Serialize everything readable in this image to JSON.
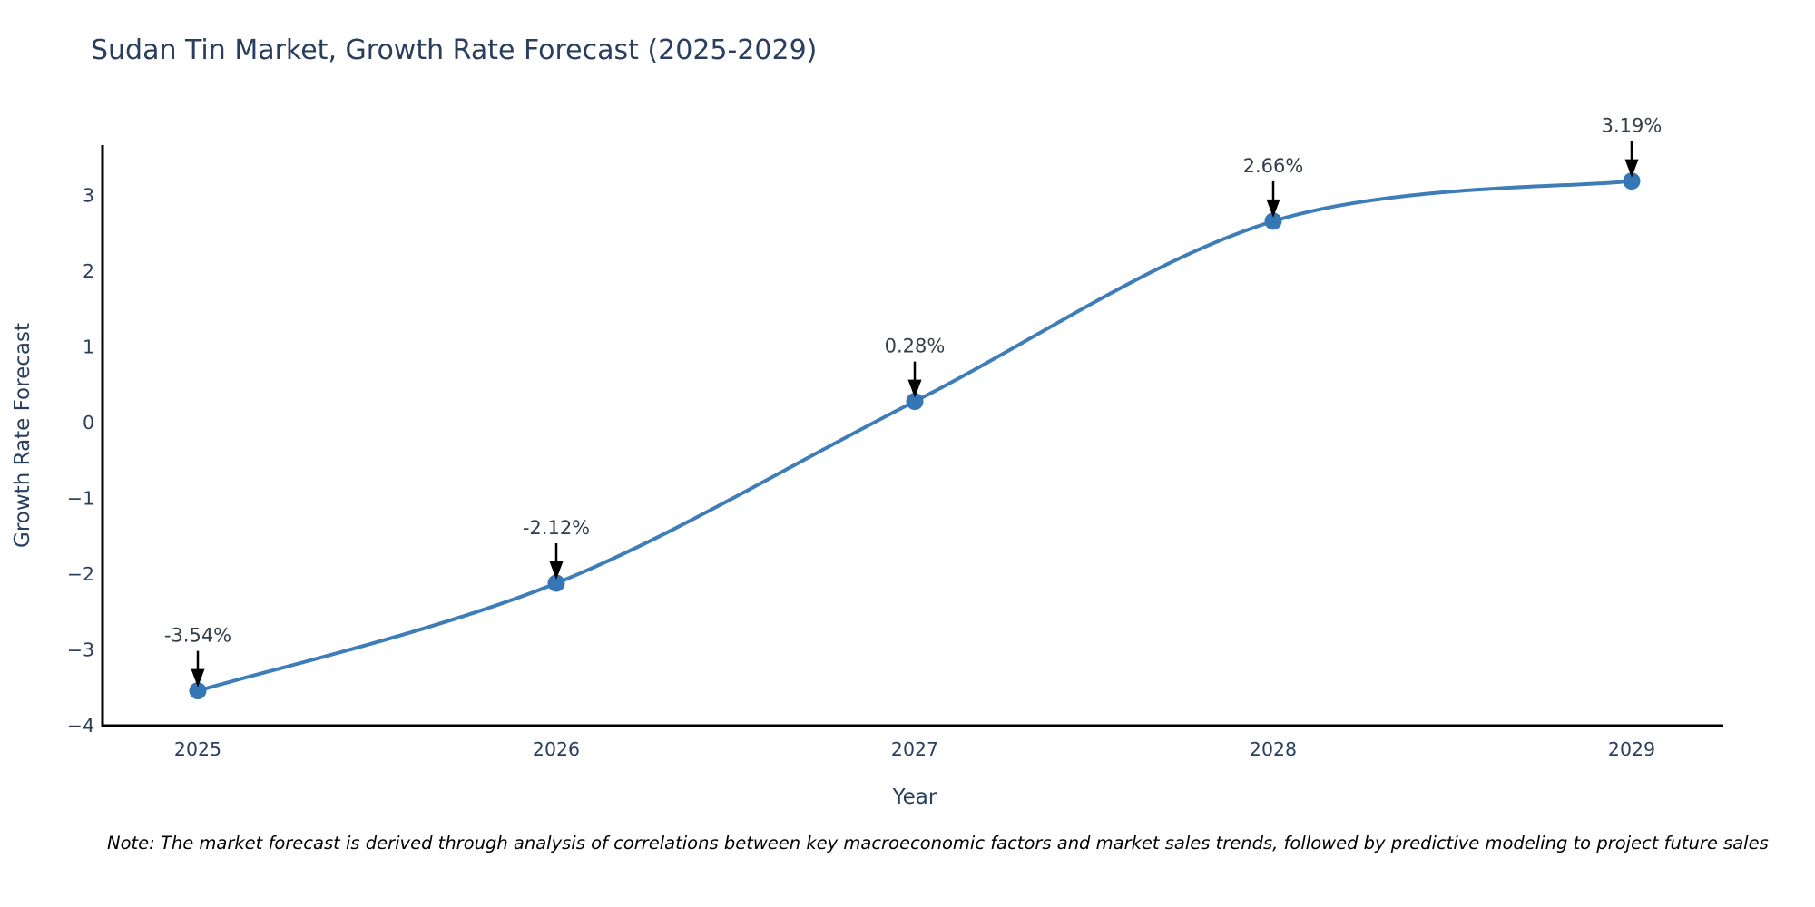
{
  "chart_data": {
    "type": "line",
    "title": "Sudan Tin Market, Growth Rate Forecast (2025-2029)",
    "xlabel": "Year",
    "ylabel": "Growth Rate Forecast",
    "x": [
      "2025",
      "2026",
      "2027",
      "2028",
      "2029"
    ],
    "values": [
      -3.54,
      -2.12,
      0.28,
      2.66,
      3.19
    ],
    "point_labels": [
      "-3.54%",
      "-2.12%",
      "0.28%",
      "2.66%",
      "3.19%"
    ],
    "ytick_values": [
      3,
      2,
      1,
      0,
      -1,
      -2,
      -3,
      -4
    ],
    "ytick_labels": [
      "3",
      "2",
      "1",
      "0",
      "−1",
      "−2",
      "−3",
      "−4"
    ],
    "ylim": [
      -4.07,
      3.67
    ],
    "grid": false,
    "legend_position": "none",
    "line_shape": "spline",
    "colors": {
      "line": "#3f7db8",
      "marker": "#3576b4",
      "axis_line": "#000000",
      "tick_text": "#2a3f5f",
      "axis_title_text": "#2a3f5f",
      "title_text": "#2a3f5f",
      "annotation_text": "#333f4b",
      "annotation_arrow": "#000000",
      "background": "#ffffff"
    },
    "note": "Note: The market forecast is derived through analysis of correlations between key macroeconomic factors and market sales trends, followed by predictive modeling to project future sales"
  }
}
